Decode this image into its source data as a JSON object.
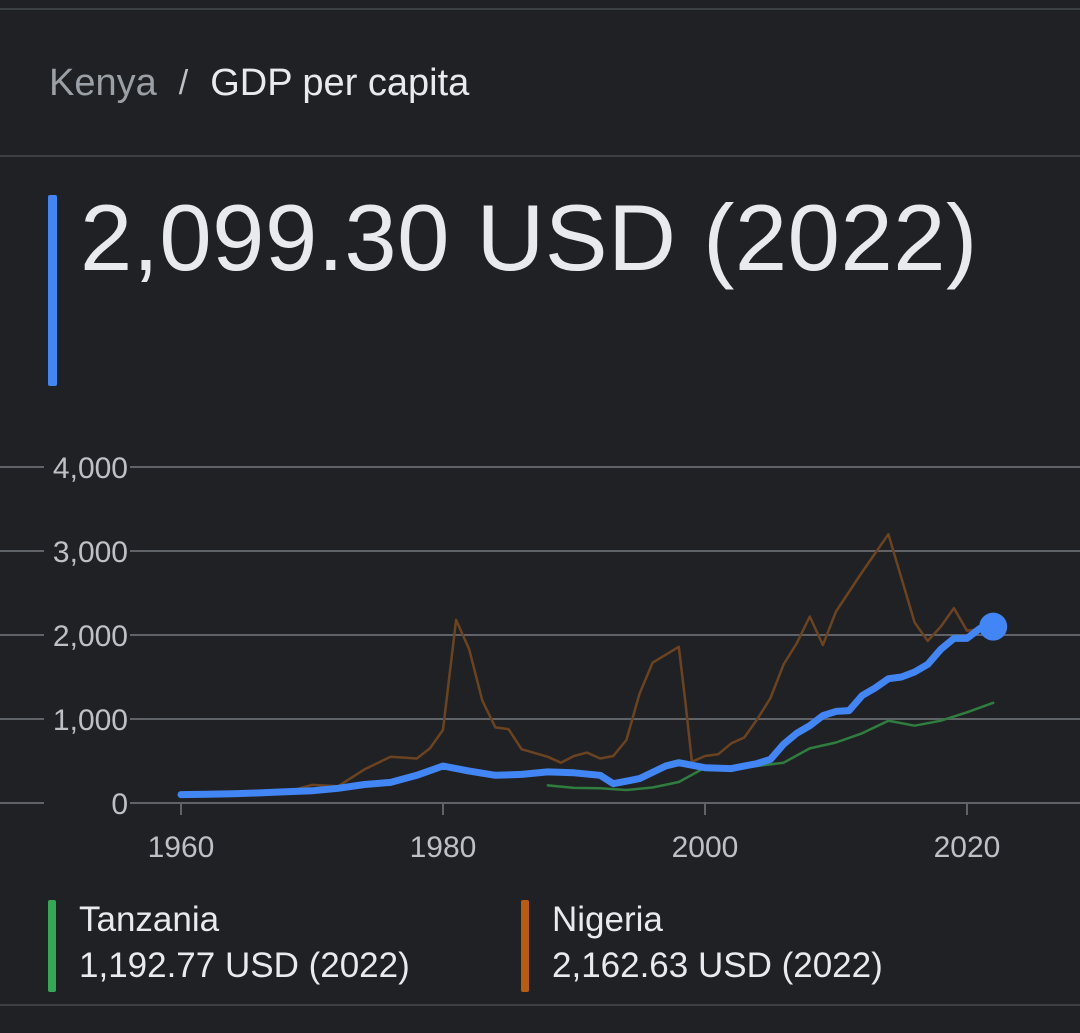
{
  "breadcrumb": {
    "parent": "Kenya",
    "separator": "/",
    "current": "GDP per capita"
  },
  "main": {
    "value": "2,099.30 USD (2022)",
    "accent_color": "#4285f4"
  },
  "legend": [
    {
      "name": "Tanzania",
      "value": "1,192.77 USD (2022)",
      "color": "#34a853"
    },
    {
      "name": "Nigeria",
      "value": "2,162.63 USD (2022)",
      "color": "#b85c12"
    }
  ],
  "chart_data": {
    "type": "line",
    "title": "",
    "xlabel": "",
    "ylabel": "",
    "xlim": [
      1959,
      2028
    ],
    "ylim": [
      0,
      4000
    ],
    "x_ticks": [
      1960,
      1980,
      2000,
      2020
    ],
    "x_tick_labels": [
      "1960",
      "1980",
      "2000",
      "2020"
    ],
    "y_ticks": [
      0,
      1000,
      2000,
      3000,
      4000
    ],
    "y_tick_labels": [
      "0",
      "1,000",
      "2,000",
      "3,000",
      "4,000"
    ],
    "grid": true,
    "series": [
      {
        "name": "Kenya",
        "color": "#4285f4",
        "highlight": true,
        "points": [
          [
            1960,
            100
          ],
          [
            1962,
            105
          ],
          [
            1964,
            110
          ],
          [
            1966,
            120
          ],
          [
            1968,
            135
          ],
          [
            1970,
            145
          ],
          [
            1972,
            175
          ],
          [
            1974,
            220
          ],
          [
            1976,
            245
          ],
          [
            1978,
            330
          ],
          [
            1980,
            440
          ],
          [
            1982,
            380
          ],
          [
            1984,
            330
          ],
          [
            1986,
            340
          ],
          [
            1988,
            370
          ],
          [
            1990,
            360
          ],
          [
            1992,
            330
          ],
          [
            1993,
            230
          ],
          [
            1995,
            290
          ],
          [
            1997,
            440
          ],
          [
            1998,
            480
          ],
          [
            2000,
            420
          ],
          [
            2002,
            410
          ],
          [
            2004,
            470
          ],
          [
            2005,
            520
          ],
          [
            2006,
            700
          ],
          [
            2007,
            830
          ],
          [
            2008,
            920
          ],
          [
            2009,
            1040
          ],
          [
            2010,
            1090
          ],
          [
            2011,
            1100
          ],
          [
            2012,
            1280
          ],
          [
            2013,
            1370
          ],
          [
            2014,
            1480
          ],
          [
            2015,
            1500
          ],
          [
            2016,
            1560
          ],
          [
            2017,
            1650
          ],
          [
            2018,
            1830
          ],
          [
            2019,
            1960
          ],
          [
            2020,
            1960
          ],
          [
            2021,
            2080
          ],
          [
            2022,
            2099.3
          ]
        ]
      },
      {
        "name": "Tanzania",
        "color": "#2f7d3f",
        "points": [
          [
            1988,
            210
          ],
          [
            1990,
            180
          ],
          [
            1992,
            175
          ],
          [
            1994,
            155
          ],
          [
            1996,
            185
          ],
          [
            1998,
            250
          ],
          [
            2000,
            420
          ],
          [
            2002,
            400
          ],
          [
            2004,
            440
          ],
          [
            2006,
            480
          ],
          [
            2008,
            650
          ],
          [
            2010,
            720
          ],
          [
            2012,
            830
          ],
          [
            2014,
            980
          ],
          [
            2016,
            920
          ],
          [
            2018,
            980
          ],
          [
            2020,
            1080
          ],
          [
            2022,
            1192.77
          ]
        ]
      },
      {
        "name": "Nigeria",
        "color": "#6b4320",
        "points": [
          [
            1960,
            95
          ],
          [
            1964,
            110
          ],
          [
            1968,
            130
          ],
          [
            1970,
            215
          ],
          [
            1972,
            200
          ],
          [
            1974,
            400
          ],
          [
            1976,
            550
          ],
          [
            1978,
            530
          ],
          [
            1979,
            650
          ],
          [
            1980,
            870
          ],
          [
            1981,
            2180
          ],
          [
            1982,
            1830
          ],
          [
            1983,
            1220
          ],
          [
            1984,
            900
          ],
          [
            1985,
            880
          ],
          [
            1986,
            640
          ],
          [
            1988,
            550
          ],
          [
            1989,
            480
          ],
          [
            1990,
            560
          ],
          [
            1991,
            600
          ],
          [
            1992,
            530
          ],
          [
            1993,
            560
          ],
          [
            1994,
            750
          ],
          [
            1995,
            1300
          ],
          [
            1996,
            1670
          ],
          [
            1998,
            1860
          ],
          [
            1998.5,
            1200
          ],
          [
            1999,
            490
          ],
          [
            2000,
            560
          ],
          [
            2001,
            580
          ],
          [
            2002,
            710
          ],
          [
            2003,
            780
          ],
          [
            2004,
            1000
          ],
          [
            2005,
            1250
          ],
          [
            2006,
            1650
          ],
          [
            2007,
            1900
          ],
          [
            2008,
            2220
          ],
          [
            2009,
            1880
          ],
          [
            2010,
            2280
          ],
          [
            2012,
            2750
          ],
          [
            2014,
            3200
          ],
          [
            2016,
            2150
          ],
          [
            2017,
            1930
          ],
          [
            2018,
            2100
          ],
          [
            2019,
            2320
          ],
          [
            2020,
            2050
          ],
          [
            2021,
            2070
          ],
          [
            2022,
            2162.63
          ]
        ]
      }
    ]
  }
}
